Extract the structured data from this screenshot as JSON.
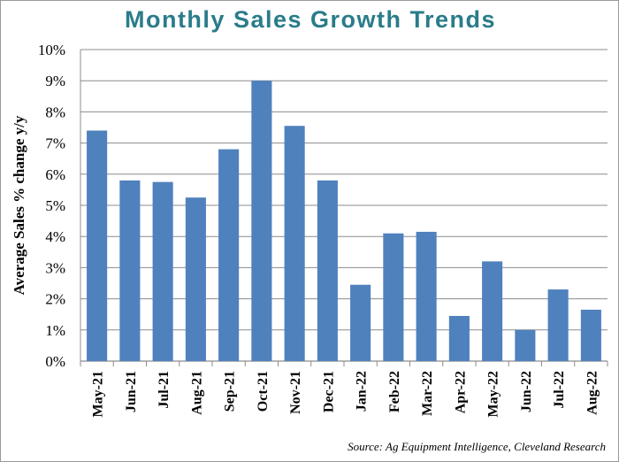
{
  "title": "Monthly Sales Growth Trends",
  "source": "Source: Ag Equipment Intelligence, Cleveland Research",
  "chart_data": {
    "type": "bar",
    "title": "Monthly Sales Growth Trends",
    "xlabel": "",
    "ylabel": "Average Sales % change y/y",
    "ylim": [
      0,
      10
    ],
    "yticks": [
      "0%",
      "1%",
      "2%",
      "3%",
      "4%",
      "5%",
      "6%",
      "7%",
      "8%",
      "9%",
      "10%"
    ],
    "grid": true,
    "bar_color": "#4f81bd",
    "categories": [
      "May-21",
      "Jun-21",
      "Jul-21",
      "Aug-21",
      "Sep-21",
      "Oct-21",
      "Nov-21",
      "Dec-21",
      "Jan-22",
      "Feb-22",
      "Mar-22",
      "Apr-22",
      "May-22",
      "Jun-22",
      "Jul-22",
      "Aug-22"
    ],
    "values": [
      7.4,
      5.8,
      5.75,
      5.25,
      6.8,
      9.0,
      7.55,
      5.8,
      2.45,
      4.1,
      4.15,
      1.45,
      3.2,
      1.0,
      2.3,
      1.65
    ]
  }
}
